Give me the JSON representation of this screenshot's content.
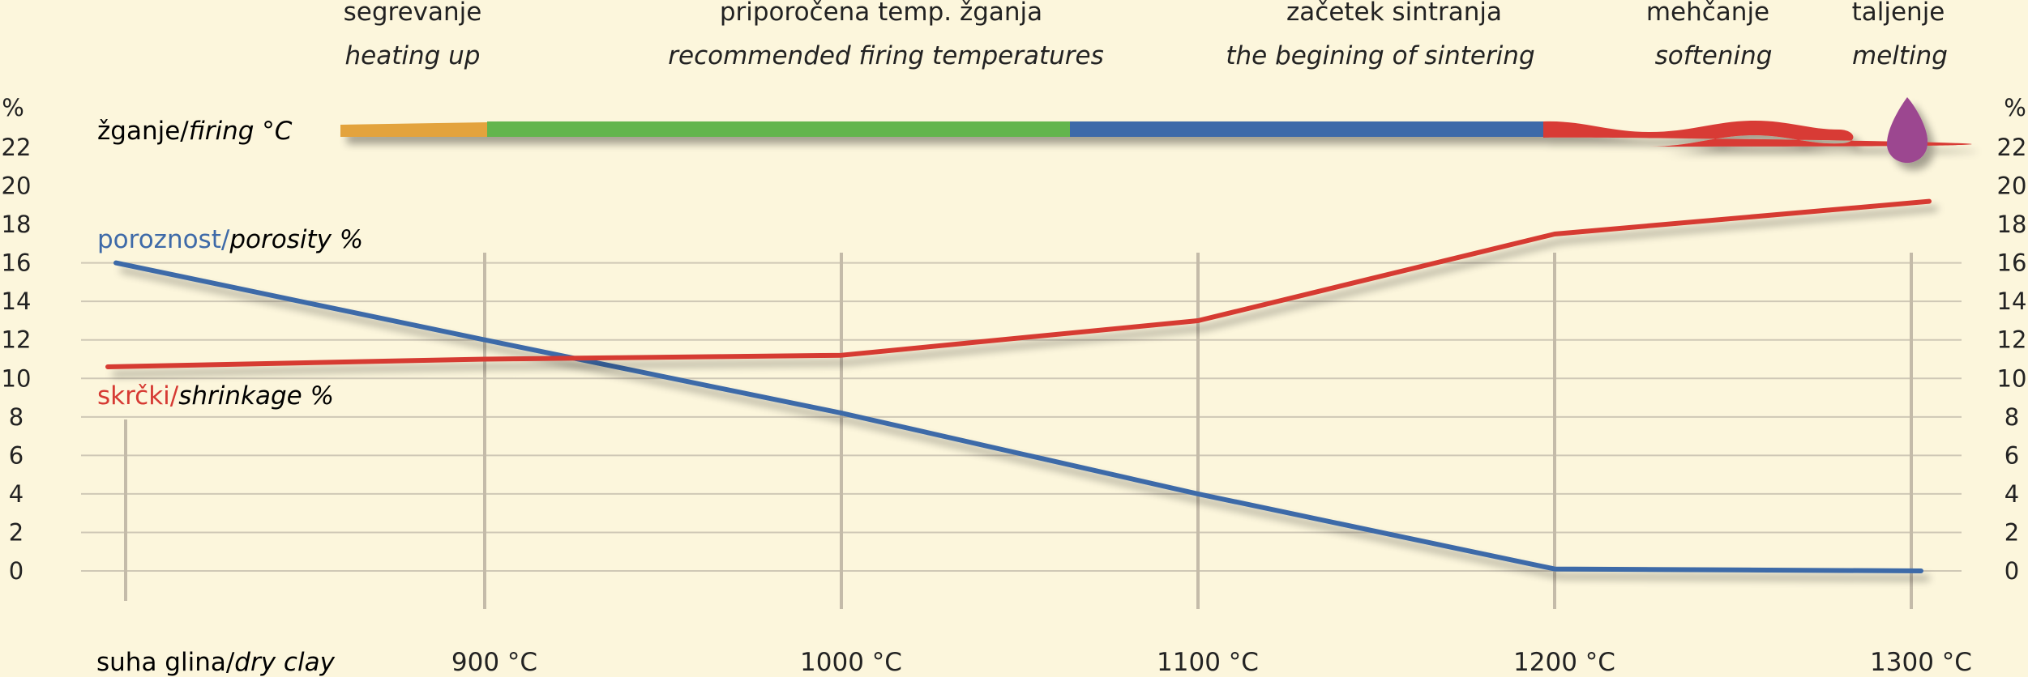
{
  "colors": {
    "background": "#fcf6dc",
    "grid": "#cfc8b6",
    "vline": "#c4bba9",
    "porosity": "#3e6aa8",
    "shrinkage": "#d63a33",
    "heating": "#e3a33c",
    "recommended": "#63b54e",
    "sintering": "#3d6aa9",
    "softening": "#d83a34",
    "melting": "#9c4790"
  },
  "stages": [
    {
      "name": "segrevanje",
      "en": "heating up"
    },
    {
      "name": "priporočena temp. žganja",
      "en": "recommended firing temperatures"
    },
    {
      "name": "začetek sintranja",
      "en": "the begining of sintering"
    },
    {
      "name": "mehčanje",
      "en": "softening"
    },
    {
      "name": "taljenje",
      "en": "melting"
    }
  ],
  "firing_label": {
    "si": "žganje/",
    "en": "firing °C"
  },
  "porosity_label": {
    "si": "poroznost/",
    "en": "porosity %"
  },
  "shrinkage_label": {
    "si": "skrčki/",
    "en": "shrinkage %"
  },
  "dry_clay_label": {
    "si": "suha glina/",
    "en": "dry clay"
  },
  "chart_data": {
    "type": "line",
    "x": [
      "suha glina/dry clay",
      "900 °C",
      "1000 °C",
      "1100 °C",
      "1200 °C",
      "1300 °C"
    ],
    "x_tick_labels": [
      "900 °C",
      "1000 °C",
      "1100 °C",
      "1200 °C",
      "1300 °C"
    ],
    "series": [
      {
        "name": "poroznost/porosity %",
        "values": [
          16,
          12,
          8.2,
          4,
          0.1,
          0
        ]
      },
      {
        "name": "skrčki/shrinkage %",
        "values": [
          10.6,
          11,
          11.2,
          13,
          17.5,
          19.2
        ]
      }
    ],
    "y_ticks": [
      0,
      2,
      4,
      6,
      8,
      10,
      12,
      14,
      16,
      18,
      20,
      22
    ],
    "y_unit": "%",
    "ylim": [
      0,
      22
    ],
    "grid": true
  }
}
